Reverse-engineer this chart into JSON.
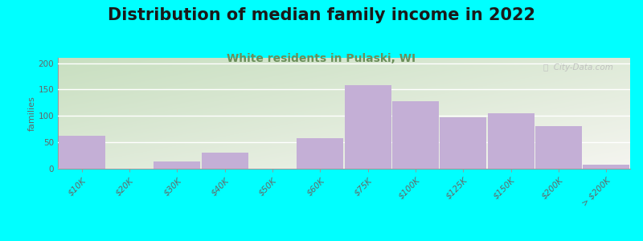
{
  "title": "Distribution of median family income in 2022",
  "subtitle": "White residents in Pulaski, WI",
  "ylabel": "families",
  "categories": [
    "$10K",
    "$20K",
    "$30K",
    "$40K",
    "$50K",
    "$60K",
    "$75K",
    "$100K",
    "$125K",
    "$150K",
    "$200K",
    "> $200K"
  ],
  "values": [
    63,
    0,
    13,
    30,
    0,
    58,
    158,
    128,
    97,
    105,
    80,
    8
  ],
  "bar_color": "#c4afd6",
  "background_outer": "#00FFFF",
  "background_tl": "#c8dfc0",
  "background_br": "#f5f5f0",
  "title_fontsize": 15,
  "subtitle_fontsize": 10,
  "subtitle_color": "#6b8e5a",
  "ylabel_fontsize": 8,
  "tick_fontsize": 7.5,
  "ylim": [
    0,
    210
  ],
  "yticks": [
    0,
    50,
    100,
    150,
    200
  ],
  "watermark": "ⓘ  City-Data.com"
}
